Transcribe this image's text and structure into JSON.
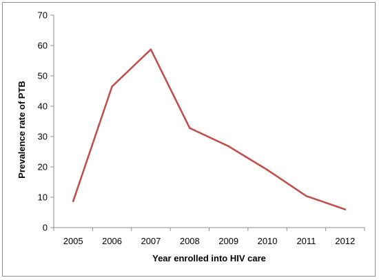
{
  "chart_data": {
    "type": "line",
    "title": "",
    "xlabel": "Year enrolled into HIV care",
    "ylabel": "Prevalence rate of PTB",
    "categories": [
      "2005",
      "2006",
      "2007",
      "2008",
      "2009",
      "2010",
      "2011",
      "2012"
    ],
    "series": [
      {
        "values": [
          8.7,
          46.5,
          58.7,
          32.8,
          26.8,
          19.0,
          10.4,
          6.0
        ],
        "color": "#c0504d"
      }
    ],
    "ylim": [
      0,
      70
    ],
    "yticks": [
      0,
      10,
      20,
      30,
      40,
      50,
      60,
      70
    ],
    "grid": false,
    "legend": "none"
  }
}
